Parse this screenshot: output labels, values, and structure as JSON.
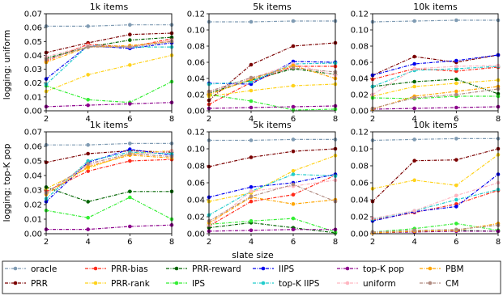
{
  "figure": {
    "row_labels": [
      "logging: uniform",
      "logging: top-K pop"
    ],
    "col_titles": [
      "1k items",
      "5k items",
      "10k items"
    ],
    "xlabel": "slate size"
  },
  "chart_data": {
    "type": "line",
    "x": [
      2,
      4,
      6,
      8
    ],
    "xticks": [
      "2",
      "4",
      "6",
      "8"
    ],
    "series_styles": [
      {
        "name": "oracle",
        "color": "#7f9bb3"
      },
      {
        "name": "PRR",
        "color": "#7a0000"
      },
      {
        "name": "PRR-bias",
        "color": "#ff2a1a"
      },
      {
        "name": "PRR-rank",
        "color": "#ffd21a"
      },
      {
        "name": "PRR-reward",
        "color": "#006400"
      },
      {
        "name": "IPS",
        "color": "#33ee33"
      },
      {
        "name": "IIPS",
        "color": "#0000ee"
      },
      {
        "name": "top-K IIPS",
        "color": "#22cccc"
      },
      {
        "name": "top-K pop",
        "color": "#8b008b"
      },
      {
        "name": "uniform",
        "color": "#ffb6c1"
      },
      {
        "name": "PBM",
        "color": "#ffa500"
      },
      {
        "name": "CM",
        "color": "#b08a80"
      }
    ],
    "panels": [
      {
        "row": 0,
        "col": 0,
        "title": "1k items",
        "ylabel": "logging: uniform",
        "ylim": [
          0,
          0.07
        ],
        "yticks": [
          "0.00",
          "0.01",
          "0.02",
          "0.03",
          "0.04",
          "0.05",
          "0.06",
          "0.07"
        ],
        "ytick_values": [
          0,
          0.01,
          0.02,
          0.03,
          0.04,
          0.05,
          0.06,
          0.07
        ],
        "series": [
          {
            "name": "oracle",
            "values": [
              0.061,
              0.061,
              0.062,
              0.062
            ]
          },
          {
            "name": "PRR",
            "values": [
              0.042,
              0.049,
              0.055,
              0.056
            ]
          },
          {
            "name": "PRR-bias",
            "values": [
              0.036,
              0.048,
              0.046,
              0.052
            ]
          },
          {
            "name": "PRR-rank",
            "values": [
              0.014,
              0.026,
              0.033,
              0.04
            ]
          },
          {
            "name": "PRR-reward",
            "values": [
              0.038,
              0.046,
              0.051,
              0.053
            ]
          },
          {
            "name": "IPS",
            "values": [
              0.018,
              0.008,
              0.006,
              0.021
            ]
          },
          {
            "name": "IIPS",
            "values": [
              0.023,
              0.047,
              0.045,
              0.049
            ]
          },
          {
            "name": "top-K IIPS",
            "values": [
              0.019,
              0.047,
              0.046,
              0.046
            ]
          },
          {
            "name": "top-K pop",
            "values": [
              0.003,
              0.004,
              0.005,
              0.006
            ]
          },
          {
            "name": "uniform",
            "values": [
              0.039,
              0.047,
              0.046,
              0.051
            ]
          },
          {
            "name": "PBM",
            "values": [
              0.035,
              0.046,
              0.047,
              0.05
            ]
          },
          {
            "name": "CM",
            "values": [
              0.037,
              0.046,
              0.046,
              0.05
            ]
          }
        ]
      },
      {
        "row": 0,
        "col": 1,
        "title": "5k items",
        "ylim": [
          0,
          0.12
        ],
        "yticks": [
          "0.00",
          "0.02",
          "0.04",
          "0.06",
          "0.08",
          "0.10",
          "0.12"
        ],
        "ytick_values": [
          0,
          0.02,
          0.04,
          0.06,
          0.08,
          0.1,
          0.12
        ],
        "series": [
          {
            "name": "oracle",
            "values": [
              0.11,
              0.11,
              0.111,
              0.111
            ]
          },
          {
            "name": "PRR",
            "values": [
              0.013,
              0.057,
              0.08,
              0.084
            ]
          },
          {
            "name": "PRR-bias",
            "values": [
              0.008,
              0.035,
              0.055,
              0.055
            ]
          },
          {
            "name": "PRR-rank",
            "values": [
              0.018,
              0.025,
              0.031,
              0.033
            ]
          },
          {
            "name": "PRR-reward",
            "values": [
              0.022,
              0.038,
              0.052,
              0.045
            ]
          },
          {
            "name": "IPS",
            "values": [
              0.02,
              0.012,
              0.001,
              0.002
            ]
          },
          {
            "name": "IIPS",
            "values": [
              0.034,
              0.033,
              0.061,
              0.06
            ]
          },
          {
            "name": "top-K IIPS",
            "values": [
              0.033,
              0.036,
              0.058,
              0.059
            ]
          },
          {
            "name": "top-K pop",
            "values": [
              0.003,
              0.004,
              0.005,
              0.006
            ]
          },
          {
            "name": "uniform",
            "values": [
              0.023,
              0.04,
              0.058,
              0.044
            ]
          },
          {
            "name": "PBM",
            "values": [
              0.02,
              0.039,
              0.056,
              0.04
            ]
          },
          {
            "name": "CM",
            "values": [
              0.024,
              0.041,
              0.053,
              0.048
            ]
          }
        ]
      },
      {
        "row": 0,
        "col": 2,
        "title": "10k items",
        "ylim": [
          0,
          0.12
        ],
        "yticks": [
          "0.00",
          "0.02",
          "0.04",
          "0.06",
          "0.08",
          "0.10",
          "0.12"
        ],
        "ytick_values": [
          0,
          0.02,
          0.04,
          0.06,
          0.08,
          0.1,
          0.12
        ],
        "series": [
          {
            "name": "oracle",
            "values": [
              0.11,
              0.111,
              0.112,
              0.112
            ]
          },
          {
            "name": "PRR",
            "values": [
              0.044,
              0.067,
              0.06,
              0.069
            ]
          },
          {
            "name": "PRR-bias",
            "values": [
              0.039,
              0.052,
              0.049,
              0.054
            ]
          },
          {
            "name": "PRR-rank",
            "values": [
              0.018,
              0.03,
              0.034,
              0.038
            ]
          },
          {
            "name": "PRR-reward",
            "values": [
              0.03,
              0.036,
              0.039,
              0.021
            ]
          },
          {
            "name": "IPS",
            "values": [
              0.016,
              0.015,
              0.018,
              0.018
            ]
          },
          {
            "name": "IIPS",
            "values": [
              0.044,
              0.058,
              0.062,
              0.069
            ]
          },
          {
            "name": "top-K IIPS",
            "values": [
              0.03,
              0.05,
              0.052,
              0.055
            ]
          },
          {
            "name": "top-K pop",
            "values": [
              0.002,
              0.003,
              0.004,
              0.005
            ]
          },
          {
            "name": "uniform",
            "values": [
              0.02,
              0.052,
              0.055,
              0.056
            ]
          },
          {
            "name": "PBM",
            "values": [
              0.002,
              0.018,
              0.024,
              0.03
            ]
          },
          {
            "name": "CM",
            "values": [
              0.003,
              0.016,
              0.02,
              0.027
            ]
          }
        ]
      },
      {
        "row": 1,
        "col": 0,
        "title": "1k items",
        "ylabel": "logging: top-K pop",
        "ylim": [
          0,
          0.07
        ],
        "yticks": [
          "0.00",
          "0.01",
          "0.02",
          "0.03",
          "0.04",
          "0.05",
          "0.06",
          "0.07"
        ],
        "ytick_values": [
          0,
          0.01,
          0.02,
          0.03,
          0.04,
          0.05,
          0.06,
          0.07
        ],
        "series": [
          {
            "name": "oracle",
            "values": [
              0.061,
              0.061,
              0.062,
              0.062
            ]
          },
          {
            "name": "PRR",
            "values": [
              0.049,
              0.055,
              0.057,
              0.056
            ]
          },
          {
            "name": "PRR-bias",
            "values": [
              0.029,
              0.043,
              0.05,
              0.051
            ]
          },
          {
            "name": "PRR-rank",
            "values": [
              0.031,
              0.045,
              0.055,
              0.057
            ]
          },
          {
            "name": "PRR-reward",
            "values": [
              0.032,
              0.022,
              0.029,
              0.029
            ]
          },
          {
            "name": "IPS",
            "values": [
              0.016,
              0.011,
              0.025,
              0.01
            ]
          },
          {
            "name": "IIPS",
            "values": [
              0.022,
              0.049,
              0.058,
              0.054
            ]
          },
          {
            "name": "top-K IIPS",
            "values": [
              0.024,
              0.05,
              0.056,
              0.055
            ]
          },
          {
            "name": "top-K pop",
            "values": [
              0.003,
              0.003,
              0.005,
              0.006
            ]
          },
          {
            "name": "uniform",
            "values": [
              0.028,
              0.047,
              0.054,
              0.057
            ]
          },
          {
            "name": "PBM",
            "values": [
              0.027,
              0.046,
              0.054,
              0.052
            ]
          },
          {
            "name": "CM",
            "values": [
              0.028,
              0.048,
              0.055,
              0.053
            ]
          }
        ]
      },
      {
        "row": 1,
        "col": 1,
        "title": "5k items",
        "ylim": [
          0,
          0.12
        ],
        "yticks": [
          "0.00",
          "0.02",
          "0.04",
          "0.06",
          "0.08",
          "0.10",
          "0.12"
        ],
        "ytick_values": [
          0,
          0.02,
          0.04,
          0.06,
          0.08,
          0.1,
          0.12
        ],
        "series": [
          {
            "name": "oracle",
            "values": [
              0.11,
              0.11,
              0.111,
              0.111
            ]
          },
          {
            "name": "PRR",
            "values": [
              0.079,
              0.09,
              0.097,
              0.1
            ]
          },
          {
            "name": "PRR-bias",
            "values": [
              0.009,
              0.038,
              0.046,
              0.069
            ]
          },
          {
            "name": "PRR-rank",
            "values": [
              0.038,
              0.048,
              0.074,
              0.092
            ]
          },
          {
            "name": "PRR-reward",
            "values": [
              0.007,
              0.013,
              0.007,
              0.001
            ]
          },
          {
            "name": "IPS",
            "values": [
              0.011,
              0.015,
              0.018,
              0.002
            ]
          },
          {
            "name": "IIPS",
            "values": [
              0.043,
              0.055,
              0.06,
              0.07
            ]
          },
          {
            "name": "top-K IIPS",
            "values": [
              0.022,
              0.05,
              0.07,
              0.068
            ]
          },
          {
            "name": "top-K pop",
            "values": [
              0.003,
              0.004,
              0.005,
              0.005
            ]
          },
          {
            "name": "uniform",
            "values": [
              0.01,
              0.05,
              0.056,
              0.063
            ]
          },
          {
            "name": "PBM",
            "values": [
              0.013,
              0.043,
              0.035,
              0.04
            ]
          },
          {
            "name": "CM",
            "values": [
              0.015,
              0.044,
              0.058,
              0.038
            ]
          }
        ]
      },
      {
        "row": 1,
        "col": 2,
        "title": "10k items",
        "ylim": [
          0,
          0.12
        ],
        "yticks": [
          "0.00",
          "0.02",
          "0.04",
          "0.06",
          "0.08",
          "0.10",
          "0.12"
        ],
        "ytick_values": [
          0,
          0.02,
          0.04,
          0.06,
          0.08,
          0.1,
          0.12
        ],
        "series": [
          {
            "name": "oracle",
            "values": [
              0.11,
              0.111,
              0.112,
              0.112
            ]
          },
          {
            "name": "PRR",
            "values": [
              0.038,
              0.086,
              0.087,
              0.1
            ]
          },
          {
            "name": "PRR-bias",
            "values": [
              0.016,
              0.025,
              0.035,
              0.051
            ]
          },
          {
            "name": "PRR-rank",
            "values": [
              0.053,
              0.063,
              0.057,
              0.093
            ]
          },
          {
            "name": "PRR-reward",
            "values": [
              0.001,
              0.003,
              0.004,
              0.003
            ]
          },
          {
            "name": "IPS",
            "values": [
              0.002,
              0.006,
              0.012,
              0.004
            ]
          },
          {
            "name": "IIPS",
            "values": [
              0.015,
              0.026,
              0.032,
              0.07
            ]
          },
          {
            "name": "top-K IIPS",
            "values": [
              0.017,
              0.027,
              0.04,
              0.052
            ]
          },
          {
            "name": "top-K pop",
            "values": [
              0.001,
              0.002,
              0.003,
              0.003
            ]
          },
          {
            "name": "uniform",
            "values": [
              0.018,
              0.027,
              0.045,
              0.06
            ]
          },
          {
            "name": "PBM",
            "values": [
              0.001,
              0.003,
              0.004,
              0.012
            ]
          },
          {
            "name": "CM",
            "values": [
              0.002,
              0.004,
              0.005,
              0.01
            ]
          }
        ]
      }
    ]
  },
  "legend": {
    "placement": "bottom",
    "items": [
      {
        "label": "oracle",
        "color": "#7f9bb3"
      },
      {
        "label": "PRR-bias",
        "color": "#ff2a1a"
      },
      {
        "label": "PRR-reward",
        "color": "#006400"
      },
      {
        "label": "IIPS",
        "color": "#0000ee"
      },
      {
        "label": "top-K pop",
        "color": "#8b008b"
      },
      {
        "label": "PBM",
        "color": "#ffa500"
      },
      {
        "label": "PRR",
        "color": "#7a0000"
      },
      {
        "label": "PRR-rank",
        "color": "#ffd21a"
      },
      {
        "label": "IPS",
        "color": "#33ee33"
      },
      {
        "label": "top-K IIPS",
        "color": "#22cccc"
      },
      {
        "label": "uniform",
        "color": "#ffb6c1"
      },
      {
        "label": "CM",
        "color": "#b08a80"
      }
    ]
  }
}
